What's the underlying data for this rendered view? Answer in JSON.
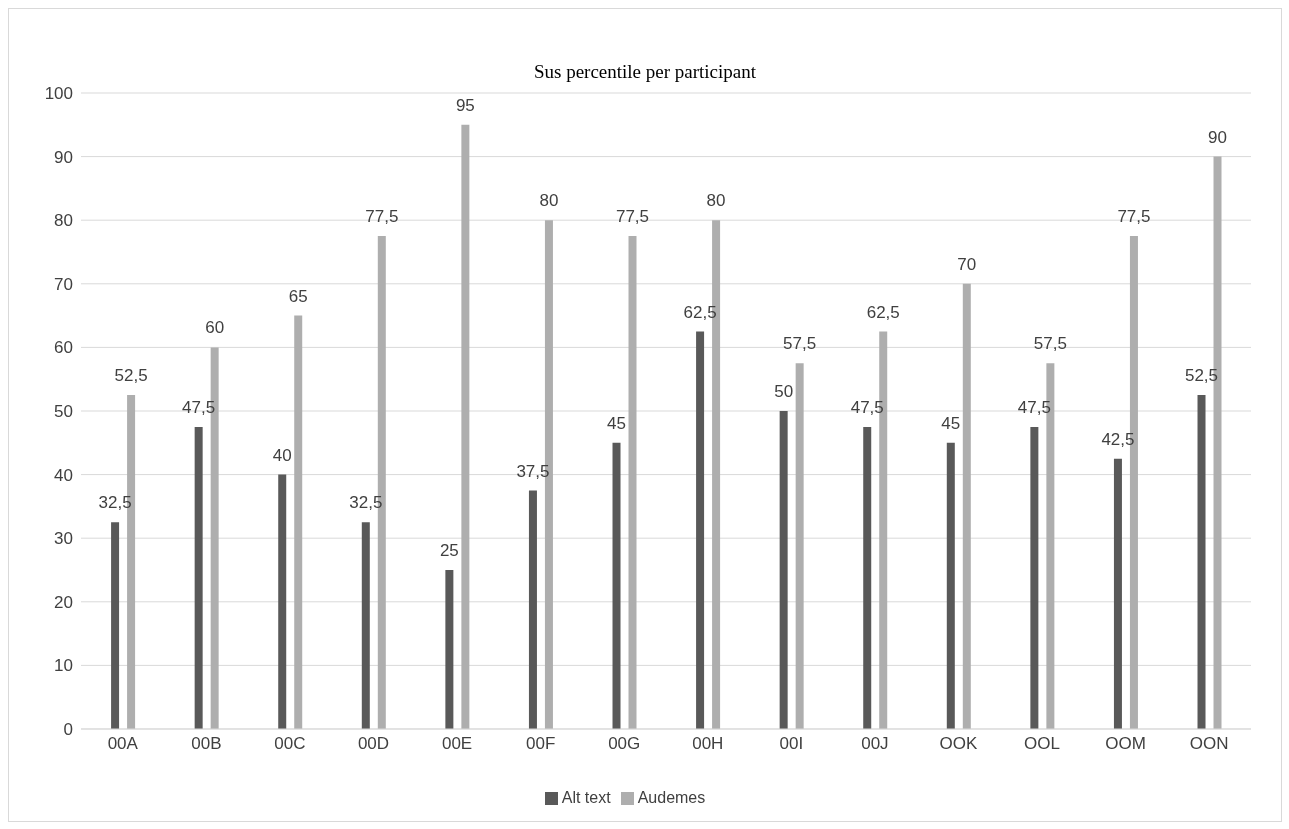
{
  "chart_data": {
    "type": "bar",
    "title": "Sus percentile per participant",
    "categories": [
      "00A",
      "00B",
      "00C",
      "00D",
      "00E",
      "00F",
      "00G",
      "00H",
      "00I",
      "00J",
      "OOK",
      "OOL",
      "OOM",
      "OON"
    ],
    "series": [
      {
        "name": "Alt text",
        "color": "#595959",
        "values": [
          32.5,
          47.5,
          40,
          32.5,
          25,
          37.5,
          45,
          62.5,
          50,
          47.5,
          45,
          47.5,
          42.5,
          52.5
        ],
        "value_labels": [
          "32,5",
          "47,5",
          "40",
          "32,5",
          "25",
          "37,5",
          "45",
          "62,5",
          "50",
          "47,5",
          "45",
          "47,5",
          "42,5",
          "52,5"
        ]
      },
      {
        "name": "Audemes",
        "color": "#aeaeae",
        "values": [
          52.5,
          60,
          65,
          77.5,
          95,
          80,
          77.5,
          80,
          57.5,
          62.5,
          70,
          57.5,
          77.5,
          90
        ],
        "value_labels": [
          "52,5",
          "60",
          "65",
          "77,5",
          "95",
          "80",
          "77,5",
          "80",
          "57,5",
          "62,5",
          "70",
          "57,5",
          "77,5",
          "90"
        ]
      }
    ],
    "ylim": [
      0,
      100
    ],
    "yticks": [
      0,
      10,
      20,
      30,
      40,
      50,
      60,
      70,
      80,
      90,
      100
    ],
    "grid": "y",
    "legend": "bottom"
  }
}
